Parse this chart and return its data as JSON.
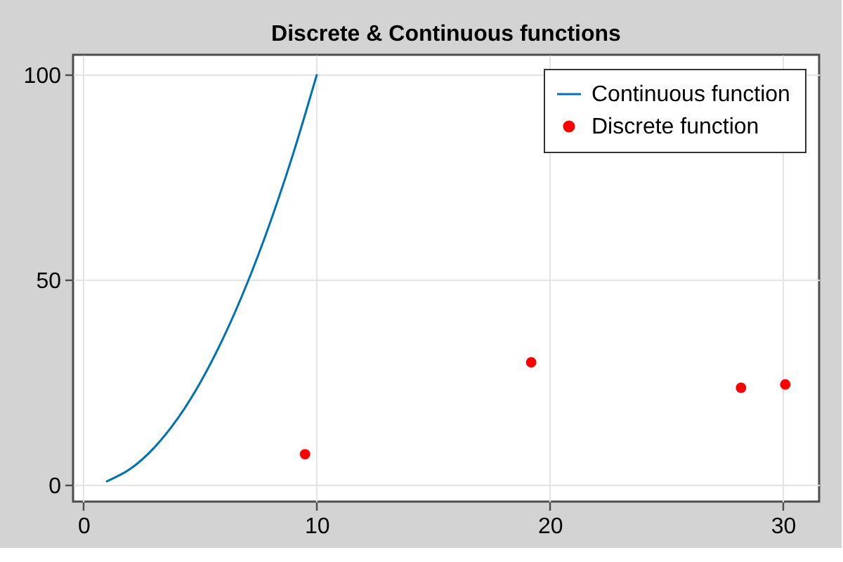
{
  "chart_data": {
    "type": "line",
    "title": "Discrete & Continuous functions",
    "series": [
      {
        "name": "Continuous function",
        "color": "#0072b2",
        "x": [
          1,
          2,
          3,
          4,
          5,
          6,
          7,
          8,
          9,
          10
        ],
        "values": [
          1,
          4,
          9,
          16,
          25,
          36,
          49,
          64,
          81,
          100
        ]
      },
      {
        "name": "Discrete function",
        "type": "scatter",
        "color": "#ff0000",
        "marker": "circle",
        "x": [
          9.5,
          19.2,
          28.2,
          30.1
        ],
        "values": [
          7.6,
          30,
          23.8,
          24.6
        ]
      }
    ],
    "xlim": [
      -0.45,
      31.55
    ],
    "ylim": [
      -3.95,
      104.95
    ],
    "xticks": [
      0,
      10,
      20,
      30
    ],
    "yticks": [
      0,
      50,
      100
    ],
    "grid": true,
    "legend": "top right"
  }
}
